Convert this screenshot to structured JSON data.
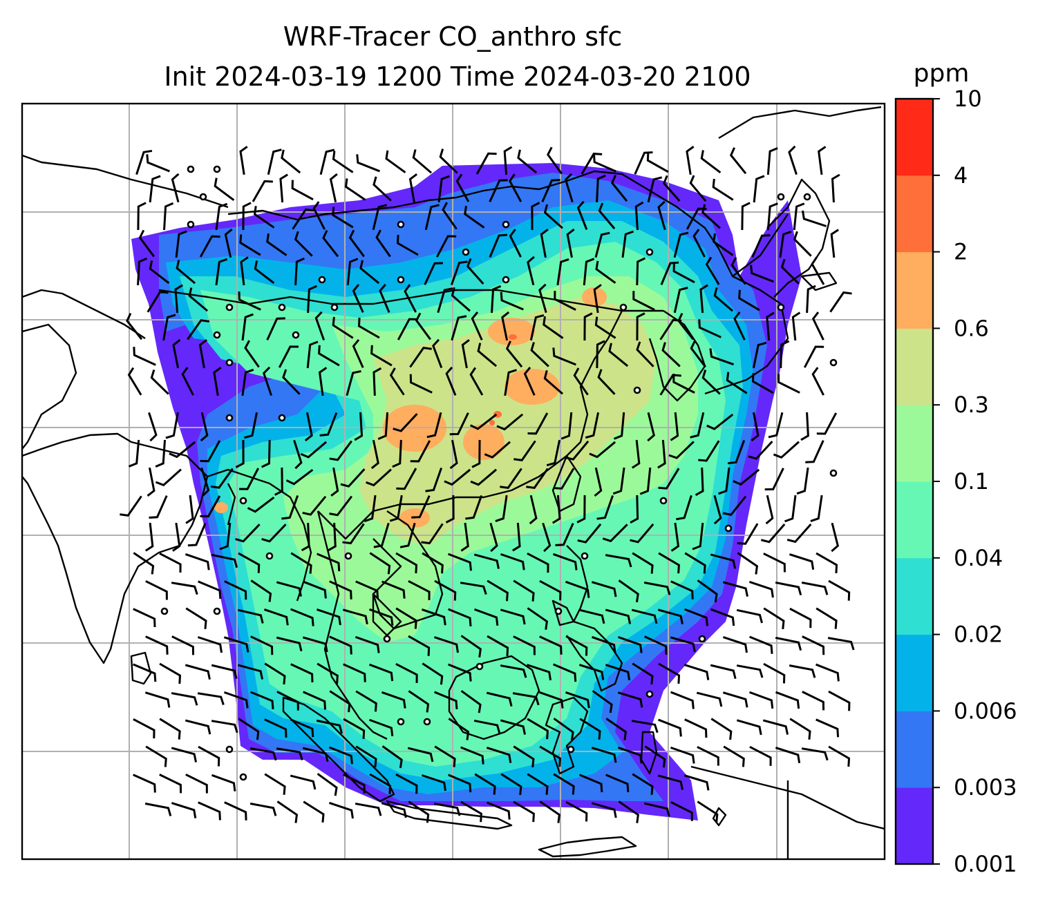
{
  "title": {
    "line1": "WRF-Tracer CO_anthro sfc",
    "line2": "Init 2024-03-19 1200 Time 2024-03-20 2100"
  },
  "colorbar": {
    "unit": "ppm",
    "levels": [
      "0.001",
      "0.003",
      "0.006",
      "0.02",
      "0.04",
      "0.1",
      "0.3",
      "0.6",
      "2",
      "4",
      "10"
    ],
    "colors": [
      "#6428fa",
      "#3377f5",
      "#04b2ea",
      "#2fdfd2",
      "#66f7b5",
      "#9cf99a",
      "#cce38a",
      "#ffad5f",
      "#ff6f3a",
      "#ff2a17"
    ]
  },
  "map": {
    "region": "South and East Asia",
    "gridlines": true,
    "features": [
      "coastlines",
      "wind barbs",
      "calm wind circles"
    ],
    "missing_color": "#ffffff"
  }
}
